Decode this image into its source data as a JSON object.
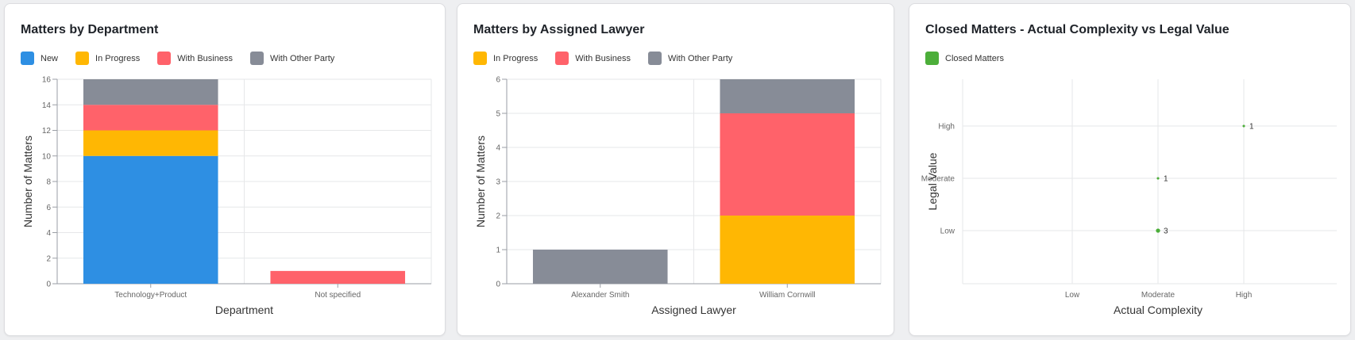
{
  "colors": {
    "new": "#2e8fe3",
    "in_progress": "#ffb703",
    "with_business": "#ff626a",
    "with_other_party": "#878c97",
    "closed": "#4cae3a"
  },
  "charts": {
    "department": {
      "title": "Matters by Department",
      "legend": [
        {
          "label": "New",
          "color": "#2e8fe3"
        },
        {
          "label": "In Progress",
          "color": "#ffb703"
        },
        {
          "label": "With Business",
          "color": "#ff626a"
        },
        {
          "label": "With Other Party",
          "color": "#878c97"
        }
      ]
    },
    "lawyer": {
      "title": "Matters by Assigned Lawyer",
      "legend": [
        {
          "label": "In Progress",
          "color": "#ffb703"
        },
        {
          "label": "With Business",
          "color": "#ff626a"
        },
        {
          "label": "With Other Party",
          "color": "#878c97"
        }
      ]
    },
    "closed": {
      "title": "Closed Matters - Actual Complexity vs Legal Value",
      "legend": [
        {
          "label": "Closed Matters",
          "color": "#4cae3a"
        }
      ]
    }
  },
  "chart_data": [
    {
      "type": "bar",
      "stacked": true,
      "title": "Matters by Department",
      "xlabel": "Department",
      "ylabel": "Number of Matters",
      "categories": [
        "Technology+Product",
        "Not specified"
      ],
      "ylim": [
        0,
        16
      ],
      "yticks": [
        0,
        2,
        4,
        6,
        8,
        10,
        12,
        14,
        16
      ],
      "series": [
        {
          "name": "New",
          "color": "#2e8fe3",
          "values": [
            10,
            0
          ]
        },
        {
          "name": "In Progress",
          "color": "#ffb703",
          "values": [
            2,
            0
          ]
        },
        {
          "name": "With Business",
          "color": "#ff626a",
          "values": [
            2,
            1
          ]
        },
        {
          "name": "With Other Party",
          "color": "#878c97",
          "values": [
            2,
            0
          ]
        }
      ],
      "grid": true,
      "legend": "top-left"
    },
    {
      "type": "bar",
      "stacked": true,
      "title": "Matters by Assigned Lawyer",
      "xlabel": "Assigned Lawyer",
      "ylabel": "Number of Matters",
      "categories": [
        "Alexander Smith",
        "William Cornwill"
      ],
      "ylim": [
        0,
        6
      ],
      "yticks": [
        0,
        1,
        2,
        3,
        4,
        5,
        6
      ],
      "series": [
        {
          "name": "In Progress",
          "color": "#ffb703",
          "values": [
            0,
            2
          ]
        },
        {
          "name": "With Business",
          "color": "#ff626a",
          "values": [
            0,
            3
          ]
        },
        {
          "name": "With Other Party",
          "color": "#878c97",
          "values": [
            1,
            1
          ]
        }
      ],
      "grid": true,
      "legend": "top-left"
    },
    {
      "type": "scatter",
      "title": "Closed Matters - Actual Complexity vs Legal Value",
      "xlabel": "Actual Complexity",
      "ylabel": "Legal Value",
      "xcategories": [
        "Low",
        "Moderate",
        "High"
      ],
      "ycategories": [
        "Low",
        "Moderate",
        "High"
      ],
      "series": [
        {
          "name": "Closed Matters",
          "color": "#4cae3a",
          "points": [
            {
              "x": "Moderate",
              "y": "Low",
              "count": 3
            },
            {
              "x": "Moderate",
              "y": "Moderate",
              "count": 1
            },
            {
              "x": "High",
              "y": "High",
              "count": 1
            }
          ]
        }
      ],
      "grid": true,
      "legend": "top-left"
    }
  ]
}
